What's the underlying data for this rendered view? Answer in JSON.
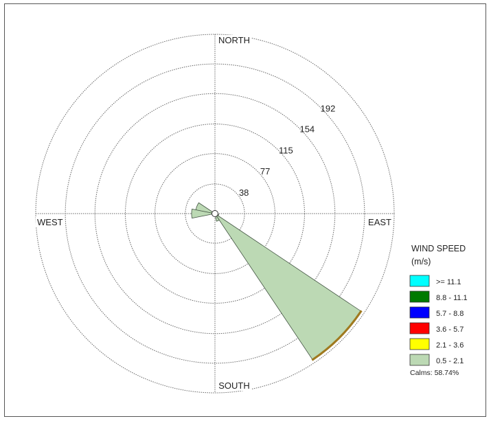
{
  "chart_data": {
    "type": "wind-rose",
    "compass": {
      "north": "NORTH",
      "south": "SOUTH",
      "east": "EAST",
      "west": "WEST"
    },
    "ring_labels": [
      "38",
      "77",
      "115",
      "154",
      "192"
    ],
    "ring_values": [
      38,
      77,
      115,
      154,
      192
    ],
    "max_radius_value": 230,
    "legend": {
      "title_line1": "WIND SPEED",
      "title_line2": "(m/s)",
      "items": [
        {
          "label": ">= 11.1",
          "color": "#00ffff"
        },
        {
          "label": "8.8 - 11.1",
          "color": "#007a00"
        },
        {
          "label": "5.7 -  8.8",
          "color": "#0000ff"
        },
        {
          "label": "3.6 -  5.7",
          "color": "#ff0000"
        },
        {
          "label": "2.1 -  3.6",
          "color": "#ffff00"
        },
        {
          "label": "0.5 -  2.1",
          "color": "#bcd9b4"
        }
      ],
      "calms": "Calms: 58.74%"
    },
    "sectors": [
      {
        "direction_deg": 135,
        "width_deg": 22.5,
        "values": [
          {
            "band": "0.5 -  2.1",
            "value": 225
          },
          {
            "band": "2.1 -  3.6",
            "value": 1
          }
        ]
      },
      {
        "direction_deg": 270,
        "width_deg": 22.5,
        "values": [
          {
            "band": "0.5 -  2.1",
            "value": 30
          }
        ]
      },
      {
        "direction_deg": 292.5,
        "width_deg": 22.5,
        "values": [
          {
            "band": "0.5 -  2.1",
            "value": 25
          }
        ]
      },
      {
        "direction_deg": 157.5,
        "width_deg": 22.5,
        "values": [
          {
            "band": "0.5 -  2.1",
            "value": 10
          }
        ]
      },
      {
        "direction_deg": 112.5,
        "width_deg": 22.5,
        "values": [
          {
            "band": "0.5 -  2.1",
            "value": 5
          }
        ]
      }
    ]
  }
}
